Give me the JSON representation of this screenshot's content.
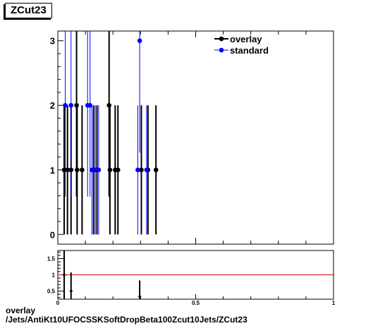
{
  "title": "ZCut23",
  "footer": {
    "line1": "overlay",
    "line2": "/Jets/AntiKt10UFOCSSKSoftDropBeta100Zcut10Jets/ZCut23"
  },
  "colors": {
    "overlay": "#000000",
    "standard": "#0000ff",
    "ratio_line": "#cc0000"
  },
  "chart_data": [
    {
      "type": "scatter",
      "xlim": [
        0,
        1
      ],
      "ylim": [
        -0.15,
        3.15
      ],
      "yticks": [
        0,
        1,
        2,
        3
      ],
      "xlabel": "",
      "ylabel": "",
      "legend_position": "top-right",
      "series": [
        {
          "name": "overlay",
          "color": "#000000",
          "points": [
            {
              "x": 0.023,
              "y": 1
            },
            {
              "x": 0.035,
              "y": 1
            },
            {
              "x": 0.048,
              "y": 1
            },
            {
              "x": 0.068,
              "y": 2
            },
            {
              "x": 0.07,
              "y": 1
            },
            {
              "x": 0.088,
              "y": 1
            },
            {
              "x": 0.13,
              "y": 1
            },
            {
              "x": 0.142,
              "y": 1
            },
            {
              "x": 0.186,
              "y": 2
            },
            {
              "x": 0.189,
              "y": 1
            },
            {
              "x": 0.208,
              "y": 1
            },
            {
              "x": 0.218,
              "y": 1
            },
            {
              "x": 0.303,
              "y": 1
            },
            {
              "x": 0.327,
              "y": 1
            },
            {
              "x": 0.356,
              "y": 1
            }
          ]
        },
        {
          "name": "standard",
          "color": "#0000ff",
          "points": [
            {
              "x": 0.027,
              "y": 2
            },
            {
              "x": 0.048,
              "y": 2
            },
            {
              "x": 0.108,
              "y": 2
            },
            {
              "x": 0.117,
              "y": 2
            },
            {
              "x": 0.124,
              "y": 1
            },
            {
              "x": 0.136,
              "y": 1
            },
            {
              "x": 0.148,
              "y": 1
            },
            {
              "x": 0.29,
              "y": 1
            },
            {
              "x": 0.297,
              "y": 3
            },
            {
              "x": 0.322,
              "y": 1
            }
          ]
        }
      ]
    },
    {
      "type": "scatter",
      "xlim": [
        0,
        1
      ],
      "ylim": [
        0.25,
        1.75
      ],
      "yticks": [
        0.5,
        1,
        1.5
      ],
      "ytick_labels": [
        "0.5",
        "1",
        "1.5"
      ],
      "xticks": [
        0,
        0.5,
        1
      ],
      "xtick_labels": [
        "0",
        "0.5",
        "1"
      ],
      "reference_line": 1,
      "series": [
        {
          "color": "#000000",
          "points": [
            {
              "x": 0.023,
              "y": 1.0
            },
            {
              "x": 0.048,
              "y": 0.5
            },
            {
              "x": 0.297,
              "y": 0.33
            }
          ]
        }
      ]
    }
  ]
}
